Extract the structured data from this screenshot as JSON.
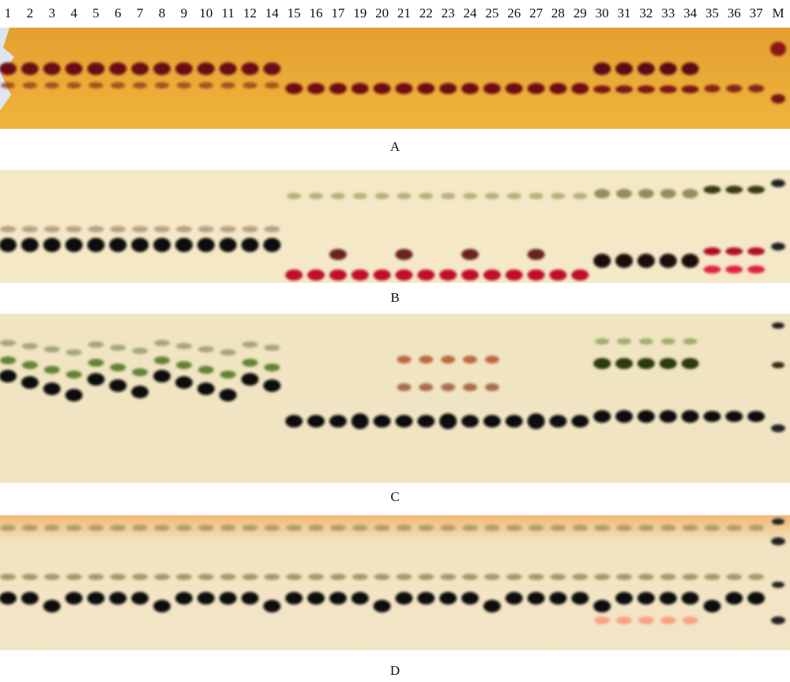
{
  "lanes": [
    "1",
    "2",
    "3",
    "4",
    "5",
    "6",
    "7",
    "8",
    "9",
    "10",
    "11",
    "12",
    "14",
    "15",
    "16",
    "17",
    "19",
    "20",
    "21",
    "22",
    "23",
    "24",
    "25",
    "26",
    "27",
    "28",
    "29",
    "30",
    "31",
    "32",
    "33",
    "34",
    "35",
    "36",
    "37",
    "M"
  ],
  "panels": [
    "A",
    "B",
    "C",
    "D"
  ]
}
